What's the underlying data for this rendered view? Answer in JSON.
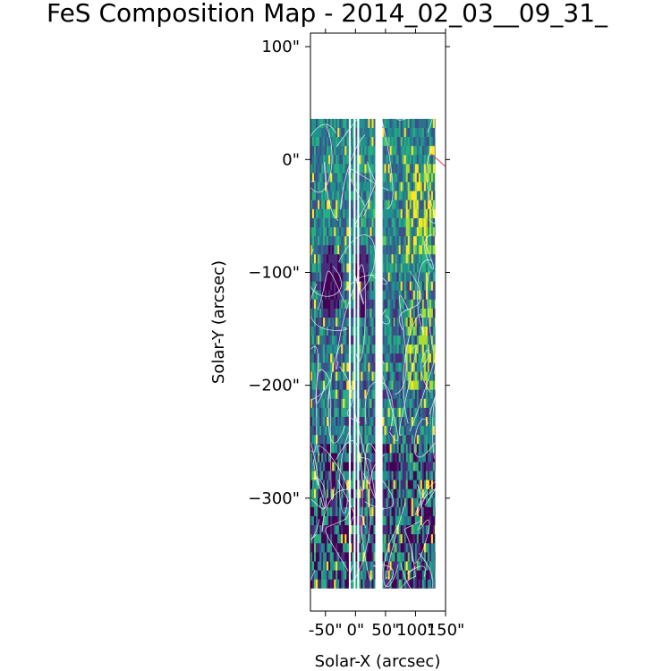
{
  "chart_data": {
    "type": "heatmap",
    "title": "FeS Composition Map - 2014_02_03__09_31_",
    "xlabel": "Solar-X (arcsec)",
    "ylabel": "Solar-Y (arcsec)",
    "xlim": [
      -75,
      150
    ],
    "ylim": [
      -400,
      112
    ],
    "x_ticks": [
      {
        "value": -50,
        "label": "-50\""
      },
      {
        "value": 0,
        "label": "0\""
      },
      {
        "value": 50,
        "label": "50\""
      },
      {
        "value": 100,
        "label": "100\""
      },
      {
        "value": 150,
        "label": "150\""
      }
    ],
    "y_ticks": [
      {
        "value": 100,
        "label": "100\""
      },
      {
        "value": 0,
        "label": "0\""
      },
      {
        "value": -100,
        "label": "−100\""
      },
      {
        "value": -200,
        "label": "−200\""
      },
      {
        "value": -300,
        "label": "−300\""
      }
    ],
    "colormap": "viridis",
    "data_gaps_x": [
      [
        -11,
        -8
      ],
      [
        -3,
        0
      ],
      [
        3,
        6
      ],
      [
        33,
        45
      ]
    ],
    "overlay": "white magnetic field lines",
    "colors": {
      "low": "#440154",
      "mid": "#21918c",
      "high": "#fde725",
      "field_lines": "#ffffff",
      "limb_line": "#e0405a"
    }
  }
}
